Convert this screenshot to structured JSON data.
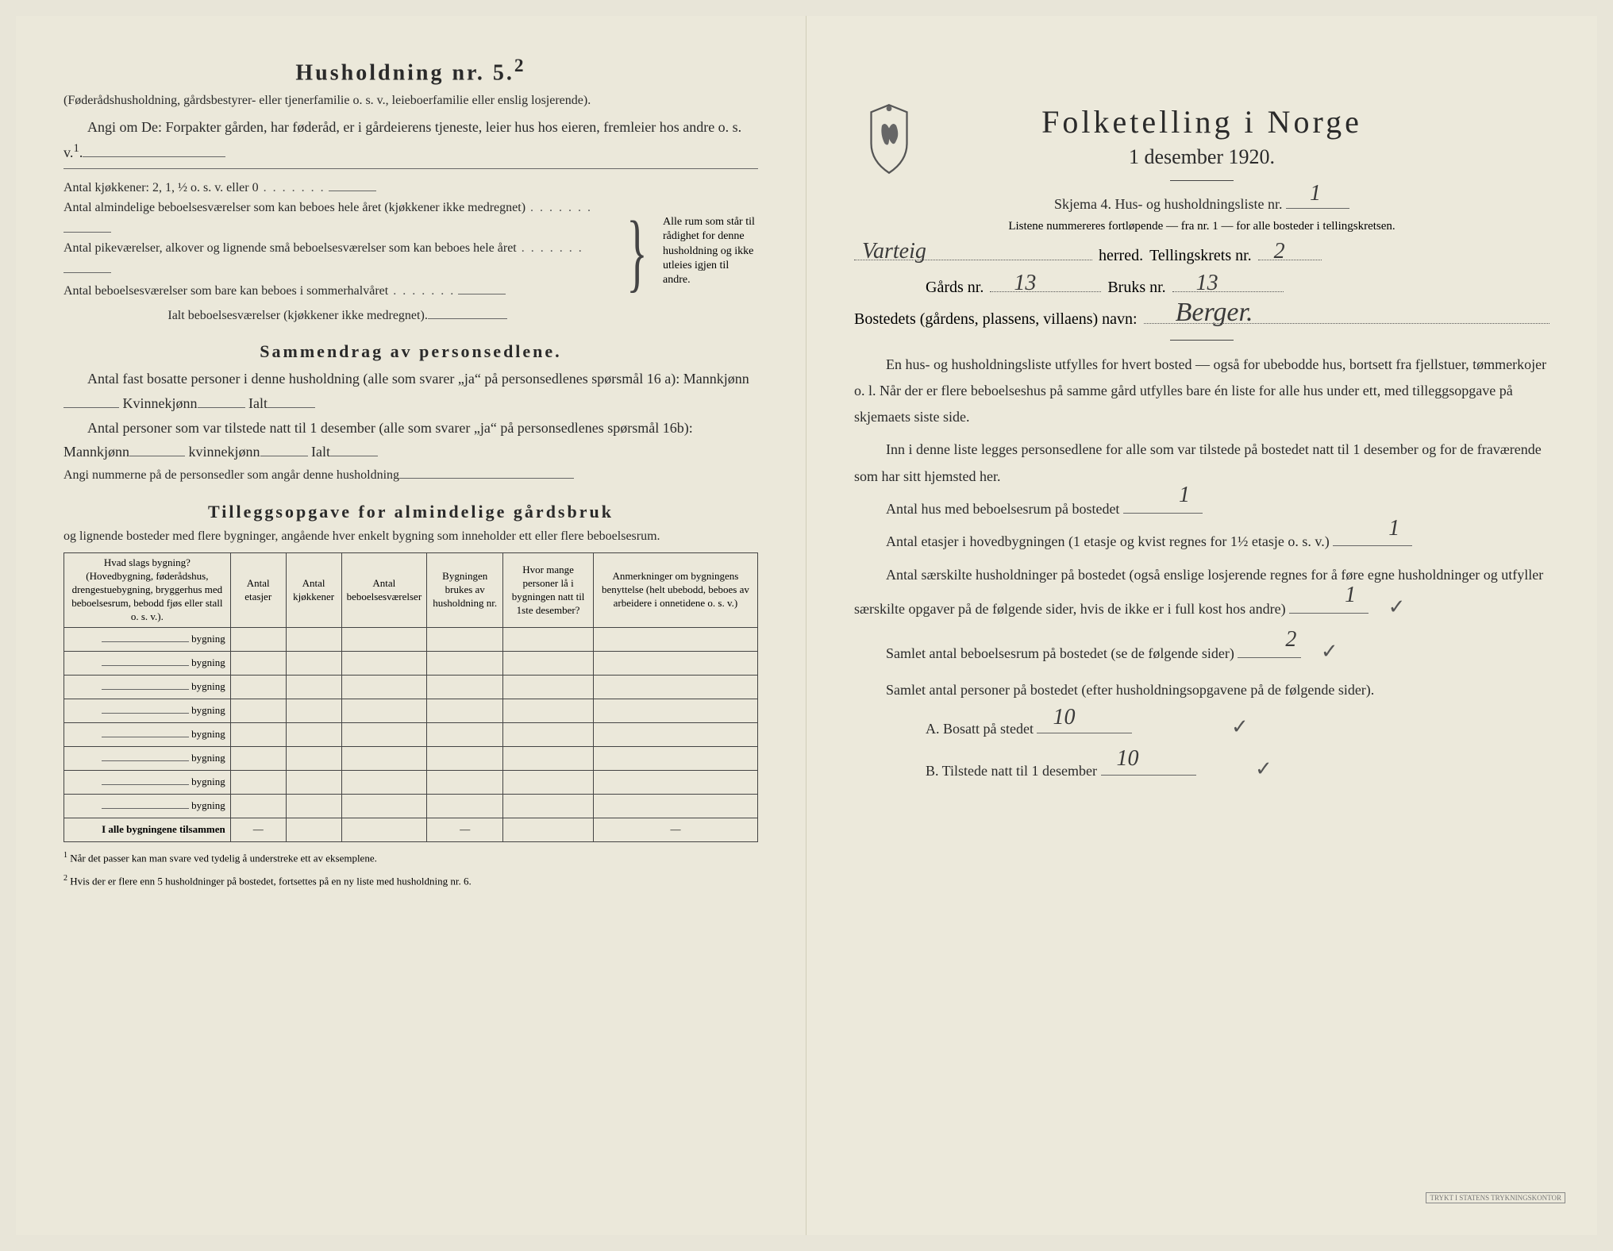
{
  "left": {
    "h5_title": "Husholdning nr. 5.",
    "h5_sup": "2",
    "h5_desc": "(Føderådshusholdning, gårdsbestyrer- eller tjenerfamilie o. s. v., leieboerfamilie eller enslig losjerende).",
    "h5_line1": "Angi om De: Forpakter gården, har føderåd, er i gårdeierens tjeneste, leier hus hos eieren, fremleier hos andre o. s. v.",
    "h5_sup1": "1",
    "kitchens": "Antal kjøkkener: 2, 1, ½ o. s. v. eller 0",
    "rooms1": "Antal almindelige beboelsesværelser som kan beboes hele året (kjøkkener ikke medregnet)",
    "rooms2": "Antal pikeværelser, alkover og lignende små beboelsesværelser som kan beboes hele året",
    "rooms3": "Antal beboelsesværelser som bare kan beboes i sommerhalvåret",
    "rooms_total": "Ialt beboelsesværelser (kjøkkener ikke medregnet)",
    "brace_text": "Alle rum som står til rådighet for denne husholdning og ikke utleies igjen til andre.",
    "summary_title": "Sammendrag av personsedlene.",
    "summary_l1a": "Antal fast bosatte personer i denne husholdning (alle som svarer „ja“ på personsedlenes spørsmål 16 a): Mannkjønn",
    "summary_l1b": "Kvinnekjønn",
    "summary_l1c": "Ialt",
    "summary_l2a": "Antal personer som var tilstede natt til 1 desember (alle som svarer „ja“ på personsedlenes spørsmål 16b): Mannkjønn",
    "summary_l2b": "kvinnekjønn",
    "summary_l2c": "Ialt",
    "summary_l3": "Angi nummerne på de personsedler som angår denne husholdning",
    "tillegg_title": "Tilleggsopgave for almindelige gårdsbruk",
    "tillegg_desc": "og lignende bosteder med flere bygninger, angående hver enkelt bygning som inneholder ett eller flere beboelsesrum.",
    "table": {
      "headers": [
        "Hvad slags bygning?\n(Hovedbygning, føderådshus, drengestuebygning, bryggerhus med beboelsesrum, bebodd fjøs eller stall o. s. v.).",
        "Antal etasjer",
        "Antal kjøkkener",
        "Antal beboelsesværelser",
        "Bygningen brukes av husholdning nr.",
        "Hvor mange personer lå i bygningen natt til 1ste desember?",
        "Anmerkninger om bygningens benyttelse (helt ubebodd, beboes av arbeidere i onnetidene o. s. v.)"
      ],
      "row_label": "bygning",
      "total_label": "I alle bygningene tilsammen",
      "row_count": 8
    },
    "footnote1_sup": "1",
    "footnote1": "Når det passer kan man svare ved tydelig å understreke ett av eksemplene.",
    "footnote2_sup": "2",
    "footnote2": "Hvis der er flere enn 5 husholdninger på bostedet, fortsettes på en ny liste med husholdning nr. 6."
  },
  "right": {
    "title": "Folketelling i Norge",
    "subtitle": "1 desember 1920.",
    "skjema_label": "Skjema 4.  Hus- og husholdningsliste nr.",
    "skjema_nr": "1",
    "listene": "Listene nummereres fortløpende — fra nr. 1 — for alle bosteder i tellingskretsen.",
    "herred_value": "Varteig",
    "herred_label": "herred.",
    "tellingskrets_label": "Tellingskrets nr.",
    "tellingskrets_nr": "2",
    "gards_label": "Gårds nr.",
    "gards_nr": "13",
    "bruks_label": "Bruks nr.",
    "bruks_nr": "13",
    "bostedets_label": "Bostedets (gårdens, plassens, villaens) navn:",
    "bostedets_navn": "Berger.",
    "para1": "En hus- og husholdningsliste utfylles for hvert bosted — også for ubebodde hus, bortsett fra fjellstuer, tømmerkojer o. l. Når der er flere beboelseshus på samme gård utfylles bare én liste for alle hus under ett, med tilleggsopgave på skjemaets siste side.",
    "para2": "Inn i denne liste legges personsedlene for alle som var tilstede på bostedet natt til 1 desember og for de fraværende som har sitt hjemsted her.",
    "q1_label": "Antal hus med beboelsesrum på bostedet",
    "q1_val": "1",
    "q2_label_a": "Antal etasjer i hovedbygningen (1 etasje og kvist regnes for 1½ etasje o. s. v.)",
    "q2_val": "1",
    "q3_label": "Antal særskilte husholdninger på bostedet (også enslige losjerende regnes for å føre egne husholdninger og utfyller særskilte opgaver på de følgende sider, hvis de ikke er i full kost hos andre)",
    "q3_val": "1",
    "q4_label": "Samlet antal beboelsesrum på bostedet (se de følgende sider)",
    "q4_val": "2",
    "q5_label": "Samlet antal personer på bostedet (efter husholdningsopgavene på de følgende sider).",
    "qA_label": "A.  Bosatt på stedet",
    "qA_val": "10",
    "qB_label": "B.  Tilstede natt til 1 desember",
    "qB_val": "10",
    "check": "✓",
    "printer_label": "TRYKT I STATENS\nTRYKNINGSKONTOR"
  },
  "colors": {
    "paper": "#ebe8da",
    "ink": "#2a2a2a",
    "handwriting": "#3a3a3a",
    "border": "#444444"
  }
}
